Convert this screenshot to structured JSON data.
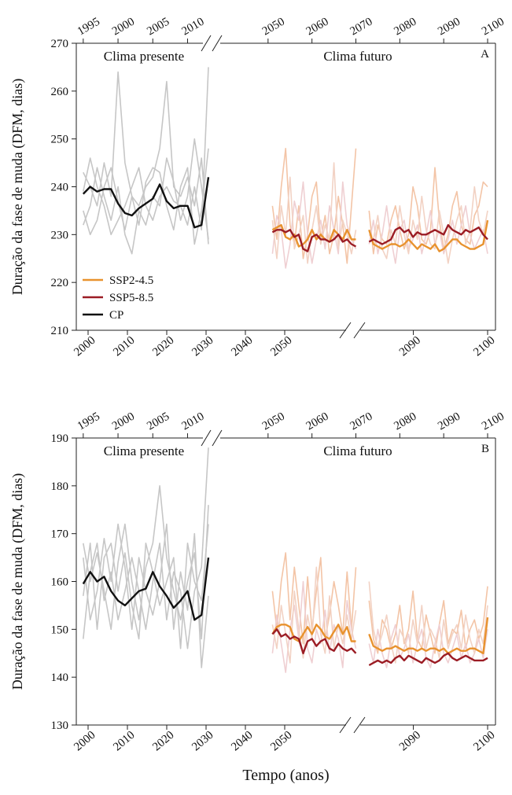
{
  "chart_data": [
    {
      "type": "line",
      "label": "A",
      "ylabel": "Duração da fase de muda (DFM, dias)",
      "annotations": [
        "Clima presente",
        "Clima futuro"
      ],
      "ylim": [
        210,
        270
      ],
      "yticks": [
        210,
        220,
        230,
        240,
        250,
        260,
        270
      ],
      "x_top": [
        {
          "xlim": [
            1994,
            2013
          ],
          "ticks": [
            1995,
            2000,
            2005,
            2010
          ]
        },
        {
          "xlim": [
            2040,
            2100
          ],
          "ticks": [
            2050,
            2060,
            2070,
            2080,
            2090,
            2100
          ]
        }
      ],
      "x_bottom": [
        {
          "xlim": [
            1997,
            2067
          ],
          "ticks": [
            2000,
            2010,
            2020,
            2030,
            2040,
            2050
          ]
        },
        {
          "xlim": [
            2082,
            2100
          ],
          "ticks": [
            2090,
            2100
          ]
        }
      ],
      "x_present": [
        1995,
        1996,
        1997,
        1998,
        1999,
        2000,
        2001,
        2002,
        2003,
        2004,
        2005,
        2006,
        2007,
        2008,
        2009,
        2010,
        2011,
        2012,
        2013
      ],
      "x_future": [
        [
          2051,
          2052,
          2053,
          2054,
          2055,
          2056,
          2057,
          2058,
          2059,
          2060,
          2061,
          2062,
          2063,
          2064,
          2065,
          2066,
          2067,
          2068,
          2069,
          2070
        ],
        [
          2073,
          2074,
          2075,
          2076,
          2077,
          2078,
          2079,
          2080,
          2081,
          2082,
          2083,
          2084,
          2085,
          2086,
          2087,
          2088,
          2089,
          2090,
          2091,
          2092,
          2093,
          2094,
          2095,
          2096,
          2097,
          2098,
          2099,
          2100
        ]
      ],
      "legend": "lower left",
      "ensemble_present": {
        "color": "#c6c6c6",
        "values": [
          [
            243,
            240,
            236,
            245,
            238,
            264,
            245,
            238,
            236,
            240,
            242,
            248,
            262,
            240,
            238,
            242,
            236,
            246,
            228
          ],
          [
            232,
            236,
            244,
            238,
            233,
            240,
            230,
            226,
            235,
            232,
            238,
            236,
            246,
            241,
            233,
            238,
            250,
            240,
            229
          ],
          [
            239,
            246,
            240,
            236,
            230,
            233,
            236,
            240,
            244,
            236,
            233,
            238,
            240,
            237,
            236,
            232,
            240,
            231,
            265
          ],
          [
            235,
            230,
            233,
            240,
            244,
            237,
            231,
            238,
            232,
            241,
            244,
            243,
            236,
            231,
            240,
            244,
            228,
            235,
            248
          ]
        ]
      },
      "ensemble_future": [
        {
          "color": "#f3c4a6",
          "values": [
            [
              236,
              229,
              240,
              248,
              232,
              228,
              236,
              225,
              230,
              238,
              241,
              229,
              234,
              226,
              230,
              238,
              232,
              224,
              236,
              248
            ],
            [
              235,
              226,
              232,
              229,
              228,
              233,
              236,
              231,
              227,
              230,
              240,
              236,
              229,
              228,
              231,
              244,
              233,
              227,
              230,
              236,
              239,
              232,
              229,
              228,
              234,
              236,
              241,
              240
            ]
          ]
        },
        {
          "color": "#efcfd2",
          "values": [
            [
              226,
              234,
              231,
              223,
              228,
              237,
              233,
              241,
              230,
              224,
              229,
              233,
              227,
              236,
              231,
              226,
              241,
              232,
              229,
              227
            ],
            [
              228,
              233,
              226,
              230,
              236,
              229,
              224,
              231,
              233,
              227,
              229,
              232,
              226,
              230,
              235,
              228,
              231,
              226,
              229,
              233,
              228,
              232,
              236,
              230,
              227,
              229,
              231,
              226
            ]
          ]
        },
        {
          "color": "#f2d2c4",
          "values": [
            [
              233,
              225,
              236,
              230,
              242,
              227,
              230,
              234,
              224,
              231,
              236,
              228,
              232,
              229,
              245,
              227,
              233,
              230,
              226,
              231
            ],
            [
              230,
              229,
              234,
              227,
              225,
              231,
              228,
              236,
              230,
              226,
              233,
              229,
              238,
              231,
              228,
              227,
              235,
              230,
              224,
              229,
              233,
              236,
              228,
              231,
              240,
              233,
              230,
              235
            ]
          ]
        }
      ],
      "series": [
        {
          "name": "SSP2-4.5",
          "color": "#e8922e",
          "values": [
            [
              231,
              231.5,
              232,
              229.5,
              229,
              230,
              227.5,
              228,
              229,
              231,
              229,
              230,
              229,
              228.5,
              231,
              230,
              229,
              231,
              229,
              229
            ],
            [
              231,
              228,
              227.5,
              227,
              227.5,
              228,
              228,
              227.5,
              228,
              229,
              228,
              227,
              228,
              227.5,
              227,
              228,
              226.5,
              227,
              228,
              229,
              229,
              228,
              227.5,
              227,
              227,
              227.5,
              228,
              233
            ]
          ]
        },
        {
          "name": "SSP5-8.5",
          "color": "#9b1c24",
          "values": [
            [
              230.5,
              231,
              231,
              230.5,
              231,
              229.5,
              230,
              227,
              226.5,
              229.5,
              230,
              229,
              229,
              228.5,
              229,
              230,
              228.5,
              229,
              228,
              227.5
            ],
            [
              228.5,
              229,
              228.5,
              228,
              228.5,
              229,
              231,
              231.5,
              230.5,
              231,
              229.5,
              230.5,
              230,
              230,
              230.5,
              231,
              230.5,
              230,
              232,
              231,
              230.5,
              230,
              231,
              230.5,
              231,
              231.5,
              230,
              229
            ]
          ]
        },
        {
          "name": "CP",
          "color": "#111111",
          "values": [
            238.5,
            240,
            239,
            239.5,
            239.5,
            236.5,
            234.5,
            234,
            235.5,
            236.5,
            237.5,
            240.5,
            237,
            235.5,
            236,
            236,
            231.5,
            232,
            242
          ]
        }
      ]
    },
    {
      "type": "line",
      "label": "B",
      "ylabel": "Duração da fase de muda (DFM, dias)",
      "xlabel": "Tempo (anos)",
      "annotations": [
        "Clima presente",
        "Clima futuro"
      ],
      "ylim": [
        130,
        190
      ],
      "yticks": [
        130,
        140,
        150,
        160,
        170,
        180,
        190
      ],
      "x_top": [
        {
          "xlim": [
            1994,
            2013
          ],
          "ticks": [
            1995,
            2000,
            2005,
            2010
          ]
        },
        {
          "xlim": [
            2040,
            2100
          ],
          "ticks": [
            2050,
            2060,
            2070,
            2080,
            2090,
            2100
          ]
        }
      ],
      "x_bottom": [
        {
          "xlim": [
            1997,
            2067
          ],
          "ticks": [
            2000,
            2010,
            2020,
            2030,
            2040,
            2050
          ]
        },
        {
          "xlim": [
            2082,
            2100
          ],
          "ticks": [
            2090,
            2100
          ]
        }
      ],
      "x_present": [
        1995,
        1996,
        1997,
        1998,
        1999,
        2000,
        2001,
        2002,
        2003,
        2004,
        2005,
        2006,
        2007,
        2008,
        2009,
        2010,
        2011,
        2012,
        2013
      ],
      "x_future": [
        [
          2051,
          2052,
          2053,
          2054,
          2055,
          2056,
          2057,
          2058,
          2059,
          2060,
          2061,
          2062,
          2063,
          2064,
          2065,
          2066,
          2067,
          2068,
          2069,
          2070
        ],
        [
          2073,
          2074,
          2075,
          2076,
          2077,
          2078,
          2079,
          2080,
          2081,
          2082,
          2083,
          2084,
          2085,
          2086,
          2087,
          2088,
          2089,
          2090,
          2091,
          2092,
          2093,
          2094,
          2095,
          2096,
          2097,
          2098,
          2099,
          2100
        ]
      ],
      "ensemble_present": {
        "color": "#c6c6c6",
        "values": [
          [
            168,
            160,
            166,
            158,
            150,
            164,
            172,
            160,
            152,
            163,
            168,
            180,
            165,
            158,
            152,
            160,
            166,
            148,
            176
          ],
          [
            148,
            162,
            168,
            156,
            162,
            152,
            158,
            165,
            158,
            150,
            160,
            168,
            152,
            162,
            158,
            146,
            158,
            163,
            188
          ],
          [
            165,
            152,
            158,
            169,
            160,
            172,
            163,
            150,
            165,
            158,
            153,
            160,
            172,
            150,
            162,
            154,
            170,
            142,
            157
          ],
          [
            157,
            168,
            150,
            165,
            168,
            158,
            166,
            155,
            148,
            168,
            162,
            155,
            160,
            165,
            146,
            168,
            160,
            156,
            172
          ]
        ]
      },
      "ensemble_future": [
        {
          "color": "#f3c4a6",
          "values": [
            [
              158,
              150,
              160,
              166,
              152,
              163,
              155,
              147,
              161,
              150,
              158,
              165,
              148,
              153,
              160,
              155,
              149,
              162,
              150,
              163
            ],
            [
              156,
              148,
              145,
              152,
              150,
              146,
              149,
              155,
              147,
              150,
              158,
              148,
              146,
              153,
              149,
              145,
              151,
              156,
              147,
              150,
              149,
              154,
              146,
              150,
              152,
              148,
              151,
              159
            ]
          ]
        },
        {
          "color": "#efcfd2",
          "values": [
            [
              145,
              153,
              147,
              141,
              150,
              155,
              148,
              160,
              146,
              143,
              150,
              147,
              154,
              145,
              151,
              148,
              142,
              156,
              150,
              146
            ],
            [
              147,
              143,
              150,
              145,
              142,
              148,
              151,
              144,
              146,
              149,
              143,
              147,
              150,
              144,
              142,
              147,
              151,
              145,
              143,
              146,
              149,
              144,
              147,
              143,
              145,
              148,
              144,
              150
            ]
          ]
        },
        {
          "color": "#f2d2c4",
          "values": [
            [
              151,
              146,
              155,
              149,
              143,
              158,
              150,
              144,
              153,
              148,
              163,
              149,
              145,
              157,
              146,
              151,
              147,
              153,
              148,
              154
            ],
            [
              160,
              150,
              146,
              149,
              153,
              147,
              143,
              150,
              148,
              145,
              152,
              147,
              155,
              146,
              150,
              148,
              144,
              152,
              146,
              149,
              151,
              146,
              153,
              148,
              145,
              150,
              147,
              155
            ]
          ]
        }
      ],
      "series": [
        {
          "name": "SSP2-4.5",
          "color": "#e8922e",
          "values": [
            [
              149,
              150.5,
              151,
              151,
              150.5,
              148,
              147.5,
              149,
              150.5,
              149,
              151,
              150,
              148.5,
              148,
              149.5,
              151,
              149,
              150.5,
              147.5,
              147.5
            ],
            [
              149,
              146.5,
              146,
              145.5,
              146,
              146,
              146.5,
              146,
              145.5,
              146,
              146,
              145.5,
              146,
              145.5,
              146,
              146,
              145.5,
              146,
              145,
              145.5,
              146,
              145.5,
              145.5,
              146,
              146,
              145.5,
              145,
              152.5
            ]
          ]
        },
        {
          "name": "SSP5-8.5",
          "color": "#9b1c24",
          "values": [
            [
              149,
              150,
              148.5,
              149,
              148,
              148.5,
              148,
              145,
              147.5,
              148,
              146.5,
              147.5,
              148,
              146,
              145.5,
              147,
              146,
              145.5,
              146,
              145
            ],
            [
              142.5,
              143,
              143.5,
              143,
              143.5,
              143,
              144,
              144.5,
              143.5,
              144.5,
              144,
              143.5,
              143,
              144,
              143.5,
              143,
              143.5,
              144.5,
              145,
              144,
              143.5,
              144,
              144.5,
              144,
              143.5,
              143.5,
              143.5,
              144
            ]
          ]
        },
        {
          "name": "CP",
          "color": "#111111",
          "values": [
            159.5,
            162,
            160,
            161,
            158,
            156,
            155,
            156.5,
            158,
            158.5,
            162,
            159,
            157,
            154.5,
            156,
            158,
            152,
            153,
            165
          ]
        }
      ]
    }
  ]
}
